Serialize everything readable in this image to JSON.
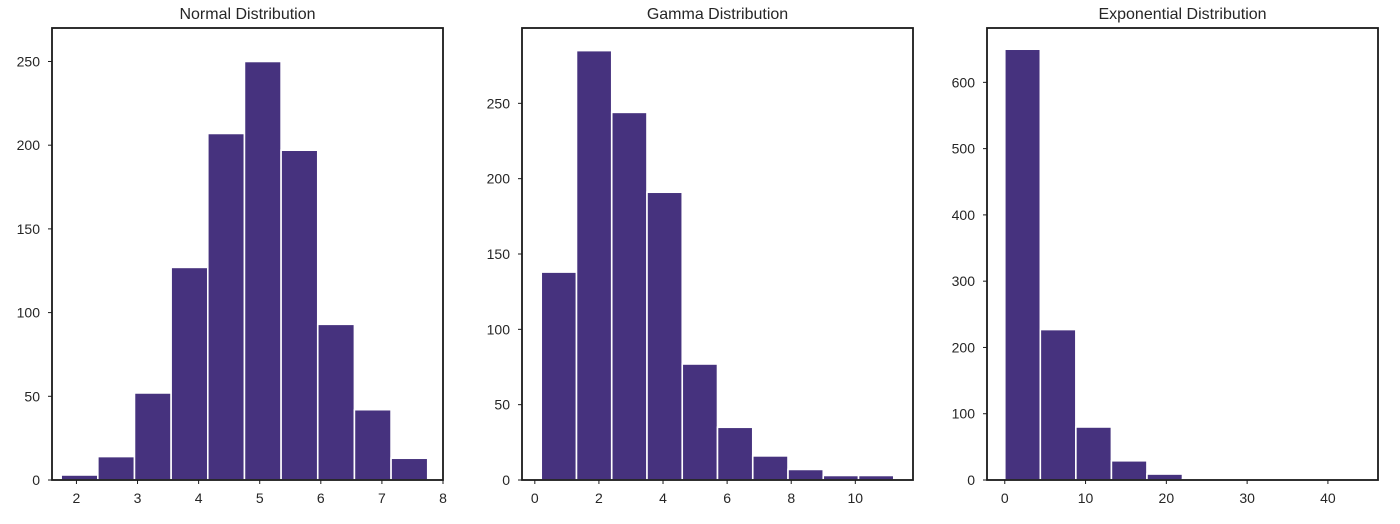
{
  "chart_data": [
    {
      "type": "bar",
      "title": "Normal Distribution",
      "xlabel": "",
      "ylabel": "",
      "bar_color": "#46327e",
      "xlim": [
        1.6,
        8.0
      ],
      "ylim": [
        0,
        270
      ],
      "xticks": [
        2,
        3,
        4,
        5,
        6,
        7,
        8
      ],
      "yticks": [
        0,
        50,
        100,
        150,
        200,
        250
      ],
      "bins": [
        {
          "x0": 1.75,
          "x1": 2.35,
          "value": 3
        },
        {
          "x0": 2.35,
          "x1": 2.95,
          "value": 14
        },
        {
          "x0": 2.95,
          "x1": 3.55,
          "value": 52
        },
        {
          "x0": 3.55,
          "x1": 4.15,
          "value": 127
        },
        {
          "x0": 4.15,
          "x1": 4.75,
          "value": 207
        },
        {
          "x0": 4.75,
          "x1": 5.35,
          "value": 250
        },
        {
          "x0": 5.35,
          "x1": 5.95,
          "value": 197
        },
        {
          "x0": 5.95,
          "x1": 6.55,
          "value": 93
        },
        {
          "x0": 6.55,
          "x1": 7.15,
          "value": 42
        },
        {
          "x0": 7.15,
          "x1": 7.75,
          "value": 13
        }
      ],
      "grid": false
    },
    {
      "type": "bar",
      "title": "Gamma Distribution",
      "xlabel": "",
      "ylabel": "",
      "bar_color": "#46327e",
      "xlim": [
        -0.4,
        11.8
      ],
      "ylim": [
        0,
        300
      ],
      "xticks": [
        0,
        2,
        4,
        6,
        8,
        10
      ],
      "yticks": [
        0,
        50,
        100,
        150,
        200,
        250
      ],
      "bins": [
        {
          "x0": 0.2,
          "x1": 1.3,
          "value": 138
        },
        {
          "x0": 1.3,
          "x1": 2.4,
          "value": 285
        },
        {
          "x0": 2.4,
          "x1": 3.5,
          "value": 244
        },
        {
          "x0": 3.5,
          "x1": 4.6,
          "value": 191
        },
        {
          "x0": 4.6,
          "x1": 5.7,
          "value": 77
        },
        {
          "x0": 5.7,
          "x1": 6.8,
          "value": 35
        },
        {
          "x0": 6.8,
          "x1": 7.9,
          "value": 16
        },
        {
          "x0": 7.9,
          "x1": 9.0,
          "value": 7
        },
        {
          "x0": 9.0,
          "x1": 10.1,
          "value": 3
        },
        {
          "x0": 10.1,
          "x1": 11.2,
          "value": 3
        }
      ],
      "grid": false
    },
    {
      "type": "bar",
      "title": "Exponential Distribution",
      "xlabel": "",
      "ylabel": "",
      "bar_color": "#46327e",
      "xlim": [
        -2.2,
        46.2
      ],
      "ylim": [
        0,
        682
      ],
      "xticks": [
        0,
        10,
        20,
        30,
        40
      ],
      "yticks": [
        0,
        100,
        200,
        300,
        400,
        500,
        600
      ],
      "bins": [
        {
          "x0": 0.0,
          "x1": 4.4,
          "value": 650
        },
        {
          "x0": 4.4,
          "x1": 8.8,
          "value": 227
        },
        {
          "x0": 8.8,
          "x1": 13.2,
          "value": 80
        },
        {
          "x0": 13.2,
          "x1": 17.6,
          "value": 29
        },
        {
          "x0": 17.6,
          "x1": 22.0,
          "value": 9
        },
        {
          "x0": 22.0,
          "x1": 26.4,
          "value": 1
        },
        {
          "x0": 26.4,
          "x1": 30.8,
          "value": 1
        },
        {
          "x0": 30.8,
          "x1": 35.2,
          "value": 0
        },
        {
          "x0": 35.2,
          "x1": 39.6,
          "value": 1
        },
        {
          "x0": 39.6,
          "x1": 44.0,
          "value": 1
        }
      ],
      "grid": false
    }
  ]
}
